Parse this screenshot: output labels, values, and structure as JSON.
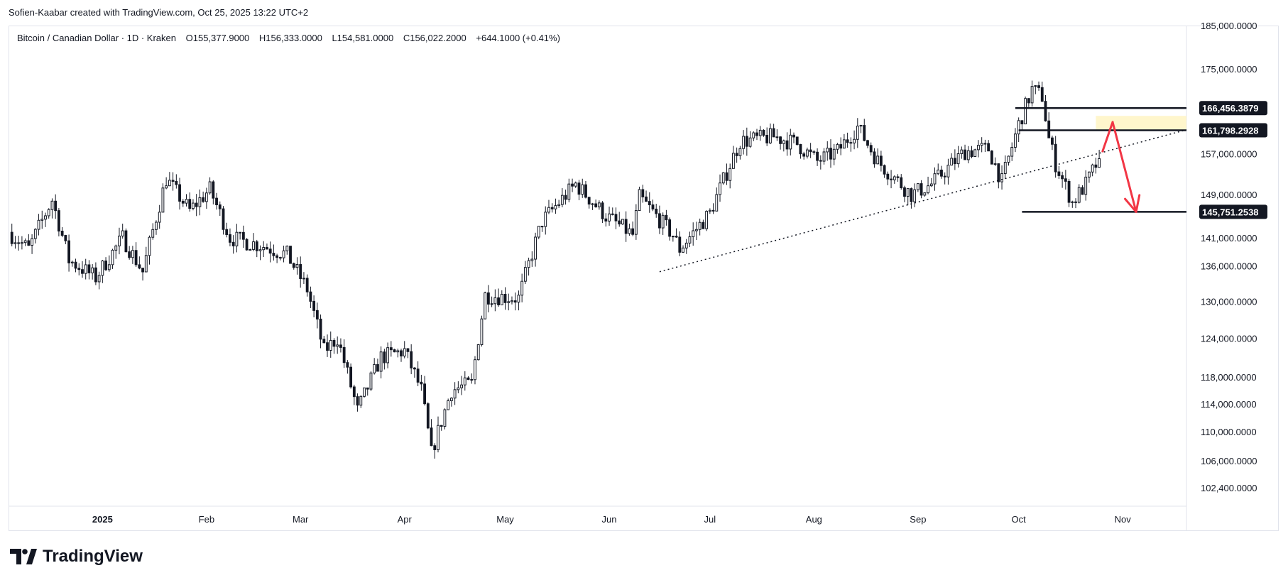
{
  "header": {
    "credit": "Sofien-Kaabar created with TradingView.com, Oct 25, 2025 13:22 UTC+2"
  },
  "legend": {
    "symbol": "Bitcoin / Canadian Dollar · 1D · Kraken",
    "open": "O155,377.9000",
    "high": "H156,333.0000",
    "low": "L154,581.0000",
    "close": "C156,022.2000",
    "change": "+644.1000 (+0.41%)"
  },
  "brand": {
    "name": "TradingView",
    "icon": "tradingview-logo-icon"
  },
  "colors": {
    "candle": "#131722",
    "arrow": "#f23645",
    "zone": "#fff6cc",
    "axis_border": "#e0e3eb"
  },
  "chart_data": {
    "type": "candlestick",
    "title": "Bitcoin / Canadian Dollar · 1D · Kraken",
    "x_range": [
      "2024-12-04",
      "2025-11-20"
    ],
    "y_range": [
      100000,
      185000
    ],
    "y_scale": "log",
    "grid": false,
    "y_ticks": [
      {
        "value": 185000,
        "label": "185,000.0000"
      },
      {
        "value": 175000,
        "label": "175,000.0000"
      },
      {
        "value": 157000,
        "label": "157,000.0000"
      },
      {
        "value": 149000,
        "label": "149,000.0000"
      },
      {
        "value": 141000,
        "label": "141,000.0000"
      },
      {
        "value": 136000,
        "label": "136,000.0000"
      },
      {
        "value": 130000,
        "label": "130,000.0000"
      },
      {
        "value": 124000,
        "label": "124,000.0000"
      },
      {
        "value": 118000,
        "label": "118,000.0000"
      },
      {
        "value": 114000,
        "label": "114,000.0000"
      },
      {
        "value": 110000,
        "label": "110,000.0000"
      },
      {
        "value": 106000,
        "label": "106,000.0000"
      },
      {
        "value": 102400,
        "label": "102,400.0000"
      }
    ],
    "x_ticks": [
      {
        "date": "2025-01-01",
        "label": "2025"
      },
      {
        "date": "2025-02-01",
        "label": "Feb"
      },
      {
        "date": "2025-03-01",
        "label": "Mar"
      },
      {
        "date": "2025-04-01",
        "label": "Apr"
      },
      {
        "date": "2025-05-01",
        "label": "May"
      },
      {
        "date": "2025-06-01",
        "label": "Jun"
      },
      {
        "date": "2025-07-01",
        "label": "Jul"
      },
      {
        "date": "2025-08-01",
        "label": "Aug"
      },
      {
        "date": "2025-09-01",
        "label": "Sep"
      },
      {
        "date": "2025-10-01",
        "label": "Oct"
      },
      {
        "date": "2025-11-01",
        "label": "Nov"
      }
    ],
    "price_path": [
      [
        "2024-12-04",
        142000
      ],
      [
        "2024-12-10",
        139000
      ],
      [
        "2024-12-17",
        148000
      ],
      [
        "2024-12-22",
        137000
      ],
      [
        "2024-12-30",
        134000
      ],
      [
        "2025-01-07",
        141000
      ],
      [
        "2025-01-13",
        135000
      ],
      [
        "2025-01-20",
        152000
      ],
      [
        "2025-01-27",
        146000
      ],
      [
        "2025-02-02",
        150000
      ],
      [
        "2025-02-08",
        141000
      ],
      [
        "2025-02-18",
        139500
      ],
      [
        "2025-02-25",
        138000
      ],
      [
        "2025-03-03",
        132000
      ],
      [
        "2025-03-08",
        122000
      ],
      [
        "2025-03-12",
        124000
      ],
      [
        "2025-03-18",
        113000
      ],
      [
        "2025-03-25",
        121000
      ],
      [
        "2025-04-01",
        122000
      ],
      [
        "2025-04-06",
        116000
      ],
      [
        "2025-04-09",
        107000
      ],
      [
        "2025-04-15",
        116000
      ],
      [
        "2025-04-21",
        117000
      ],
      [
        "2025-04-25",
        131000
      ],
      [
        "2025-05-05",
        130500
      ],
      [
        "2025-05-12",
        144000
      ],
      [
        "2025-05-22",
        151000
      ],
      [
        "2025-05-31",
        145000
      ],
      [
        "2025-06-08",
        141500
      ],
      [
        "2025-06-10",
        148500
      ],
      [
        "2025-06-20",
        141500
      ],
      [
        "2025-06-22",
        139000
      ],
      [
        "2025-07-01",
        145500
      ],
      [
        "2025-07-10",
        159500
      ],
      [
        "2025-07-20",
        160500
      ],
      [
        "2025-07-27",
        159000
      ],
      [
        "2025-08-02",
        155500
      ],
      [
        "2025-08-08",
        157500
      ],
      [
        "2025-08-14",
        162500
      ],
      [
        "2025-08-20",
        155500
      ],
      [
        "2025-08-30",
        149000
      ],
      [
        "2025-09-05",
        151000
      ],
      [
        "2025-09-15",
        157500
      ],
      [
        "2025-09-22",
        158000
      ],
      [
        "2025-09-26",
        151500
      ],
      [
        "2025-10-01",
        163000
      ],
      [
        "2025-10-05",
        170500
      ],
      [
        "2025-10-08",
        169000
      ],
      [
        "2025-10-10",
        160000
      ],
      [
        "2025-10-12",
        155000
      ],
      [
        "2025-10-17",
        147500
      ],
      [
        "2025-10-21",
        151000
      ],
      [
        "2025-10-25",
        156022.2
      ]
    ],
    "annotations": {
      "levels": [
        {
          "value": 166456.3879,
          "label": "166,456.3879",
          "from": "2025-09-30",
          "to": "2025-11-20"
        },
        {
          "value": 161798.2928,
          "label": "161,798.2928",
          "from": "2025-10-01",
          "to": "2025-11-20"
        },
        {
          "value": 145751.2538,
          "label": "145,751.2538",
          "from": "2025-10-02",
          "to": "2025-11-20"
        }
      ],
      "trendline": {
        "style": "dotted",
        "start": [
          "2025-06-16",
          135000
        ],
        "end": [
          "2025-11-20",
          161900
        ]
      },
      "zone": {
        "from": "2025-10-24",
        "to": "2025-11-20",
        "low": 161798.2928,
        "high": 164800
      },
      "arrows": [
        {
          "from": [
            "2025-10-26",
            157500
          ],
          "to": [
            "2025-10-29",
            163500
          ]
        },
        {
          "from": [
            "2025-10-29",
            163500
          ],
          "to": [
            "2025-11-05",
            145751.2538
          ]
        }
      ]
    }
  }
}
